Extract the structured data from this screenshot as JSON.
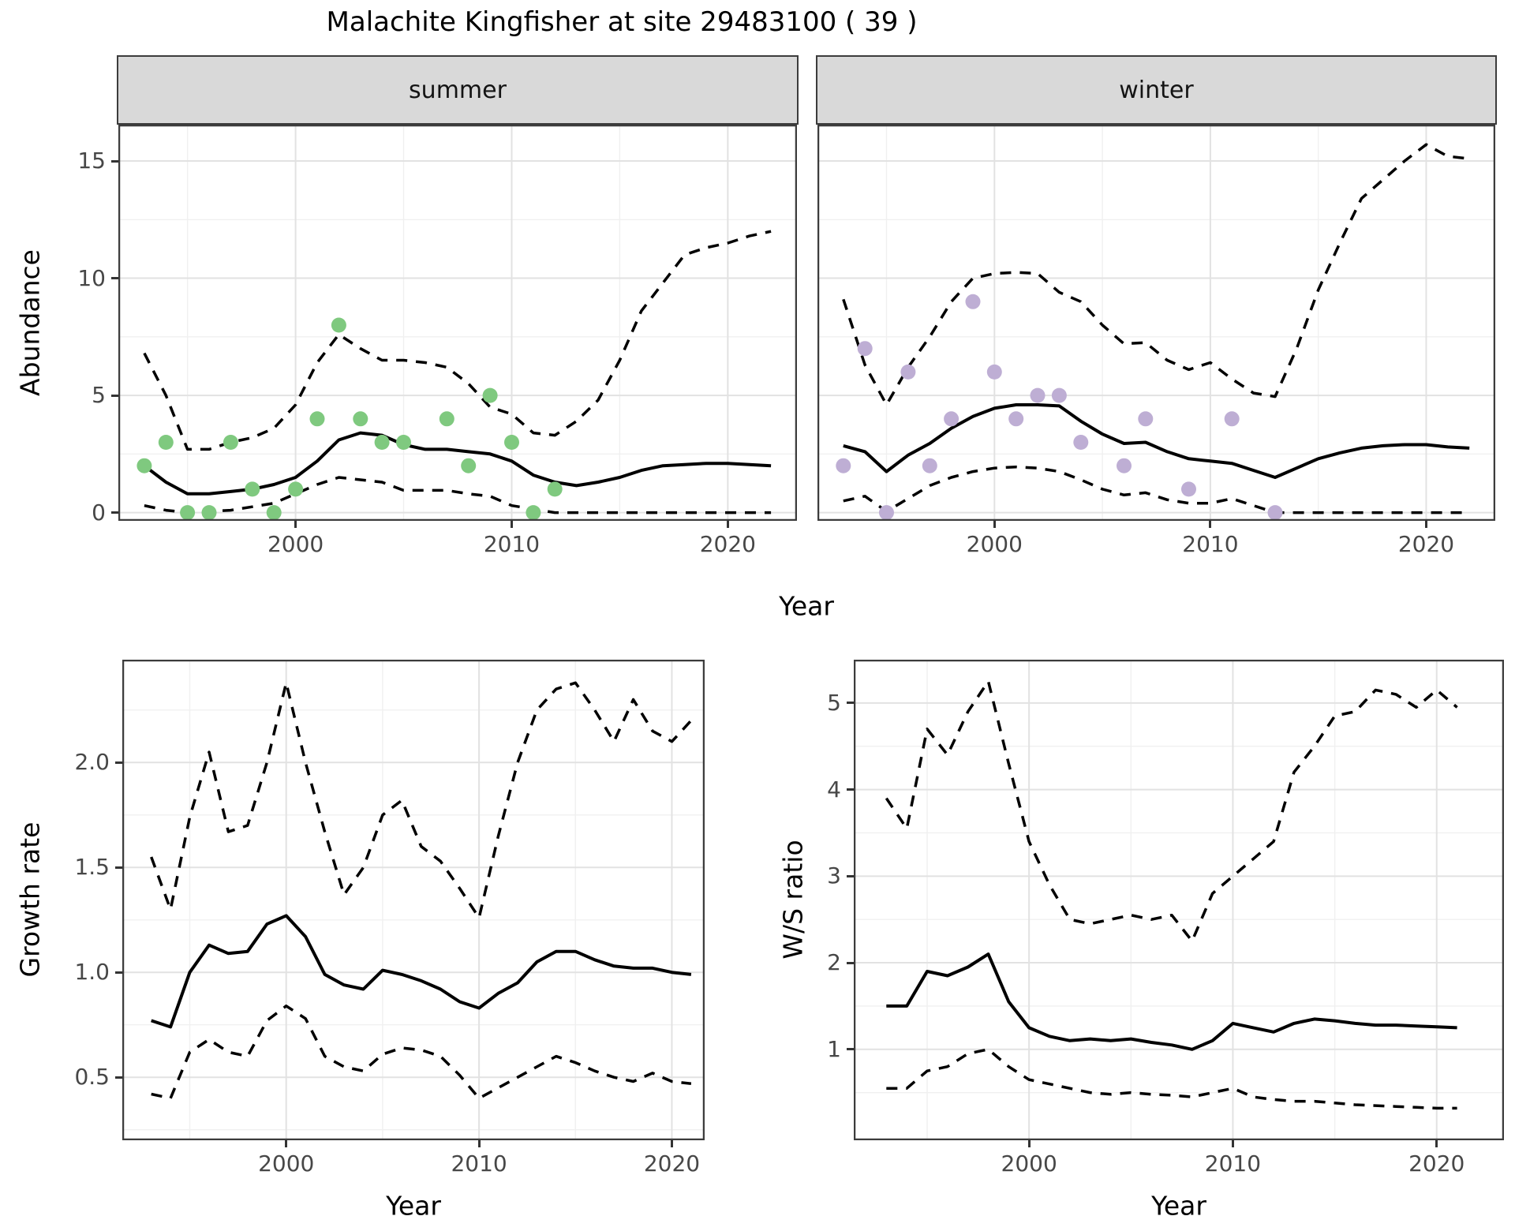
{
  "title": "Malachite Kingfisher at site 29483100 ( 39 )",
  "colors": {
    "summer_point": "#7FC97F",
    "winter_point": "#BEAED4",
    "line": "#000000",
    "strip_bg": "#D9D9D9",
    "panel_border": "#3C3C3C",
    "grid_major": "#E2E2E2",
    "grid_minor": "#F0F0F0",
    "tick_text": "#474747"
  },
  "chart_data": [
    {
      "id": "summer-abundance",
      "type": "line",
      "facet_label": "summer",
      "xlabel": "Year",
      "ylabel": "Abundance",
      "xlim": [
        1991.8,
        2023.2
      ],
      "ylim": [
        -0.35,
        16.55
      ],
      "xticks": [
        2000,
        2010,
        2020
      ],
      "xtick_labels": [
        "2000",
        "2010",
        "2020"
      ],
      "x_minor": [
        1995,
        2005,
        2015
      ],
      "yticks": [
        0,
        5,
        10,
        15
      ],
      "ytick_labels": [
        "0",
        "5",
        "10",
        "15"
      ],
      "y_minor": [
        2.5,
        7.5,
        12.5
      ],
      "grid": true,
      "legend": "none",
      "x": [
        1993,
        1994,
        1995,
        1996,
        1997,
        1998,
        1999,
        2000,
        2001,
        2002,
        2003,
        2004,
        2005,
        2006,
        2007,
        2008,
        2009,
        2010,
        2011,
        2012,
        2013,
        2014,
        2015,
        2016,
        2017,
        2018,
        2019,
        2020,
        2021,
        2022
      ],
      "series": [
        {
          "name": "estimate",
          "style": "solid",
          "values": [
            2.0,
            1.3,
            0.8,
            0.8,
            0.9,
            1.0,
            1.2,
            1.5,
            2.2,
            3.1,
            3.4,
            3.3,
            2.9,
            2.7,
            2.7,
            2.6,
            2.5,
            2.2,
            1.6,
            1.3,
            1.15,
            1.3,
            1.5,
            1.8,
            2.0,
            2.05,
            2.1,
            2.1,
            2.05,
            2.0
          ]
        },
        {
          "name": "upper_ci",
          "style": "dashed",
          "values": [
            6.8,
            5.0,
            2.7,
            2.7,
            3.0,
            3.2,
            3.6,
            4.6,
            6.4,
            7.6,
            7.0,
            6.5,
            6.5,
            6.4,
            6.2,
            5.5,
            4.5,
            4.2,
            3.4,
            3.3,
            3.9,
            4.8,
            6.5,
            8.6,
            9.8,
            11.0,
            11.3,
            11.5,
            11.8,
            12.0
          ]
        },
        {
          "name": "lower_ci",
          "style": "dashed",
          "values": [
            0.3,
            0.1,
            0.0,
            0.05,
            0.1,
            0.25,
            0.4,
            0.8,
            1.2,
            1.5,
            1.4,
            1.3,
            0.95,
            0.95,
            0.95,
            0.8,
            0.7,
            0.3,
            0.15,
            0.0,
            0.0,
            0.0,
            0.0,
            0.0,
            0.0,
            0.0,
            0.0,
            0.0,
            0.0,
            0.0
          ]
        }
      ],
      "points": {
        "name": "observed-counts",
        "color": "#7FC97F",
        "x": [
          1993,
          1994,
          1995,
          1996,
          1997,
          1998,
          1999,
          2000,
          2001,
          2002,
          2003,
          2004,
          2005,
          2007,
          2008,
          2009,
          2010,
          2011,
          2012
        ],
        "y": [
          2,
          3,
          0,
          0,
          3,
          1,
          0,
          1,
          4,
          8,
          4,
          3,
          3,
          4,
          2,
          5,
          3,
          0,
          1
        ]
      }
    },
    {
      "id": "winter-abundance",
      "type": "line",
      "facet_label": "winter",
      "xlabel": "Year",
      "ylabel": "Abundance",
      "xlim": [
        1991.8,
        2023.2
      ],
      "ylim": [
        -0.35,
        16.55
      ],
      "xticks": [
        2000,
        2010,
        2020
      ],
      "xtick_labels": [
        "2000",
        "2010",
        "2020"
      ],
      "x_minor": [
        1995,
        2005,
        2015
      ],
      "yticks": [
        0,
        5,
        10,
        15
      ],
      "ytick_labels": [
        "0",
        "5",
        "10",
        "15"
      ],
      "y_minor": [
        2.5,
        7.5,
        12.5
      ],
      "grid": true,
      "legend": "none",
      "x": [
        1993,
        1994,
        1995,
        1996,
        1997,
        1998,
        1999,
        2000,
        2001,
        2002,
        2003,
        2004,
        2005,
        2006,
        2007,
        2008,
        2009,
        2010,
        2011,
        2012,
        2013,
        2014,
        2015,
        2016,
        2017,
        2018,
        2019,
        2020,
        2021,
        2022
      ],
      "series": [
        {
          "name": "estimate",
          "style": "solid",
          "values": [
            2.85,
            2.6,
            1.75,
            2.45,
            2.95,
            3.6,
            4.1,
            4.45,
            4.6,
            4.6,
            4.55,
            3.9,
            3.35,
            2.95,
            3.0,
            2.6,
            2.3,
            2.2,
            2.1,
            1.8,
            1.5,
            1.9,
            2.3,
            2.55,
            2.75,
            2.85,
            2.9,
            2.9,
            2.8,
            2.75
          ]
        },
        {
          "name": "upper_ci",
          "style": "dashed",
          "values": [
            9.1,
            6.3,
            4.6,
            6.2,
            7.5,
            9.0,
            10.0,
            10.2,
            10.25,
            10.2,
            9.4,
            9.0,
            8.0,
            7.2,
            7.25,
            6.5,
            6.1,
            6.4,
            5.7,
            5.1,
            4.95,
            7.0,
            9.5,
            11.5,
            13.4,
            14.2,
            15.0,
            15.7,
            15.2,
            15.1
          ]
        },
        {
          "name": "lower_ci",
          "style": "dashed",
          "values": [
            0.5,
            0.7,
            0.05,
            0.6,
            1.15,
            1.5,
            1.75,
            1.9,
            1.95,
            1.9,
            1.75,
            1.4,
            1.0,
            0.75,
            0.85,
            0.55,
            0.4,
            0.4,
            0.6,
            0.3,
            0.0,
            0.0,
            0.0,
            0.0,
            0.0,
            0.0,
            0.0,
            0.0,
            0.0,
            0.0
          ]
        }
      ],
      "points": {
        "name": "observed-counts",
        "color": "#BEAED4",
        "x": [
          1993,
          1994,
          1995,
          1996,
          1997,
          1998,
          1999,
          2000,
          2001,
          2002,
          2003,
          2004,
          2006,
          2007,
          2009,
          2011,
          2013
        ],
        "y": [
          2,
          7,
          0,
          6,
          2,
          4,
          9,
          6,
          4,
          5,
          5,
          3,
          2,
          4,
          1,
          4,
          0
        ]
      }
    },
    {
      "id": "growth-rate",
      "type": "line",
      "facet_label": "",
      "xlabel": "Year",
      "ylabel": "Growth rate",
      "xlim": [
        1991.5,
        2021.7
      ],
      "ylim": [
        0.2,
        2.49
      ],
      "xticks": [
        2000,
        2010,
        2020
      ],
      "xtick_labels": [
        "2000",
        "2010",
        "2020"
      ],
      "x_minor": [
        1995,
        2005,
        2015
      ],
      "yticks": [
        0.5,
        1.0,
        1.5,
        2.0
      ],
      "ytick_labels": [
        "0.5",
        "1.0",
        "1.5",
        "2.0"
      ],
      "y_minor": [
        0.25,
        0.75,
        1.25,
        1.75,
        2.25
      ],
      "grid": true,
      "legend": "none",
      "x": [
        1993,
        1994,
        1995,
        1996,
        1997,
        1998,
        1999,
        2000,
        2001,
        2002,
        2003,
        2004,
        2005,
        2006,
        2007,
        2008,
        2009,
        2010,
        2011,
        2012,
        2013,
        2014,
        2015,
        2016,
        2017,
        2018,
        2019,
        2020,
        2021
      ],
      "series": [
        {
          "name": "estimate",
          "style": "solid",
          "values": [
            0.77,
            0.74,
            1.0,
            1.13,
            1.09,
            1.1,
            1.23,
            1.27,
            1.17,
            0.99,
            0.94,
            0.92,
            1.01,
            0.99,
            0.96,
            0.92,
            0.86,
            0.83,
            0.9,
            0.95,
            1.05,
            1.1,
            1.1,
            1.06,
            1.03,
            1.02,
            1.02,
            1.0,
            0.99
          ]
        },
        {
          "name": "upper_ci",
          "style": "dashed",
          "values": [
            1.55,
            1.3,
            1.74,
            2.05,
            1.67,
            1.7,
            2.0,
            2.38,
            2.0,
            1.67,
            1.37,
            1.5,
            1.75,
            1.82,
            1.6,
            1.53,
            1.4,
            1.26,
            1.65,
            2.0,
            2.25,
            2.35,
            2.38,
            2.25,
            2.1,
            2.3,
            2.15,
            2.1,
            2.2
          ]
        },
        {
          "name": "lower_ci",
          "style": "dashed",
          "values": [
            0.42,
            0.4,
            0.62,
            0.68,
            0.62,
            0.6,
            0.77,
            0.84,
            0.78,
            0.6,
            0.55,
            0.53,
            0.61,
            0.64,
            0.63,
            0.6,
            0.51,
            0.4,
            0.45,
            0.5,
            0.55,
            0.6,
            0.57,
            0.53,
            0.5,
            0.48,
            0.52,
            0.48,
            0.47
          ]
        }
      ],
      "points": null
    },
    {
      "id": "ws-ratio",
      "type": "line",
      "facet_label": "",
      "xlabel": "Year",
      "ylabel": "W/S ratio",
      "xlim": [
        1991.4,
        2023.3
      ],
      "ylim": [
        -0.05,
        5.5
      ],
      "xticks": [
        2000,
        2010,
        2020
      ],
      "xtick_labels": [
        "2000",
        "2010",
        "2020"
      ],
      "x_minor": [
        1995,
        2005,
        2015
      ],
      "yticks": [
        1,
        2,
        3,
        4,
        5
      ],
      "ytick_labels": [
        "1",
        "2",
        "3",
        "4",
        "5"
      ],
      "y_minor": [
        0.5,
        1.5,
        2.5,
        3.5,
        4.5
      ],
      "grid": true,
      "legend": "none",
      "x": [
        1993,
        1994,
        1995,
        1996,
        1997,
        1998,
        1999,
        2000,
        2001,
        2002,
        2003,
        2004,
        2005,
        2006,
        2007,
        2008,
        2009,
        2010,
        2011,
        2012,
        2013,
        2014,
        2015,
        2016,
        2017,
        2018,
        2019,
        2020,
        2021
      ],
      "series": [
        {
          "name": "estimate",
          "style": "solid",
          "values": [
            1.5,
            1.5,
            1.9,
            1.85,
            1.95,
            2.1,
            1.55,
            1.25,
            1.15,
            1.1,
            1.12,
            1.1,
            1.12,
            1.08,
            1.05,
            1.0,
            1.1,
            1.3,
            1.25,
            1.2,
            1.3,
            1.35,
            1.33,
            1.3,
            1.28,
            1.28,
            1.27,
            1.26,
            1.25
          ]
        },
        {
          "name": "upper_ci",
          "style": "dashed",
          "values": [
            3.9,
            3.55,
            4.7,
            4.4,
            4.9,
            5.25,
            4.3,
            3.4,
            2.9,
            2.5,
            2.45,
            2.5,
            2.55,
            2.5,
            2.55,
            2.25,
            2.8,
            3.0,
            3.2,
            3.4,
            4.2,
            4.5,
            4.85,
            4.9,
            5.15,
            5.1,
            4.95,
            5.15,
            4.95
          ]
        },
        {
          "name": "lower_ci",
          "style": "dashed",
          "values": [
            0.55,
            0.55,
            0.75,
            0.8,
            0.95,
            1.0,
            0.8,
            0.65,
            0.6,
            0.55,
            0.5,
            0.48,
            0.5,
            0.48,
            0.47,
            0.45,
            0.5,
            0.55,
            0.45,
            0.42,
            0.4,
            0.4,
            0.38,
            0.36,
            0.35,
            0.34,
            0.33,
            0.32,
            0.32
          ]
        }
      ],
      "points": null
    }
  ]
}
